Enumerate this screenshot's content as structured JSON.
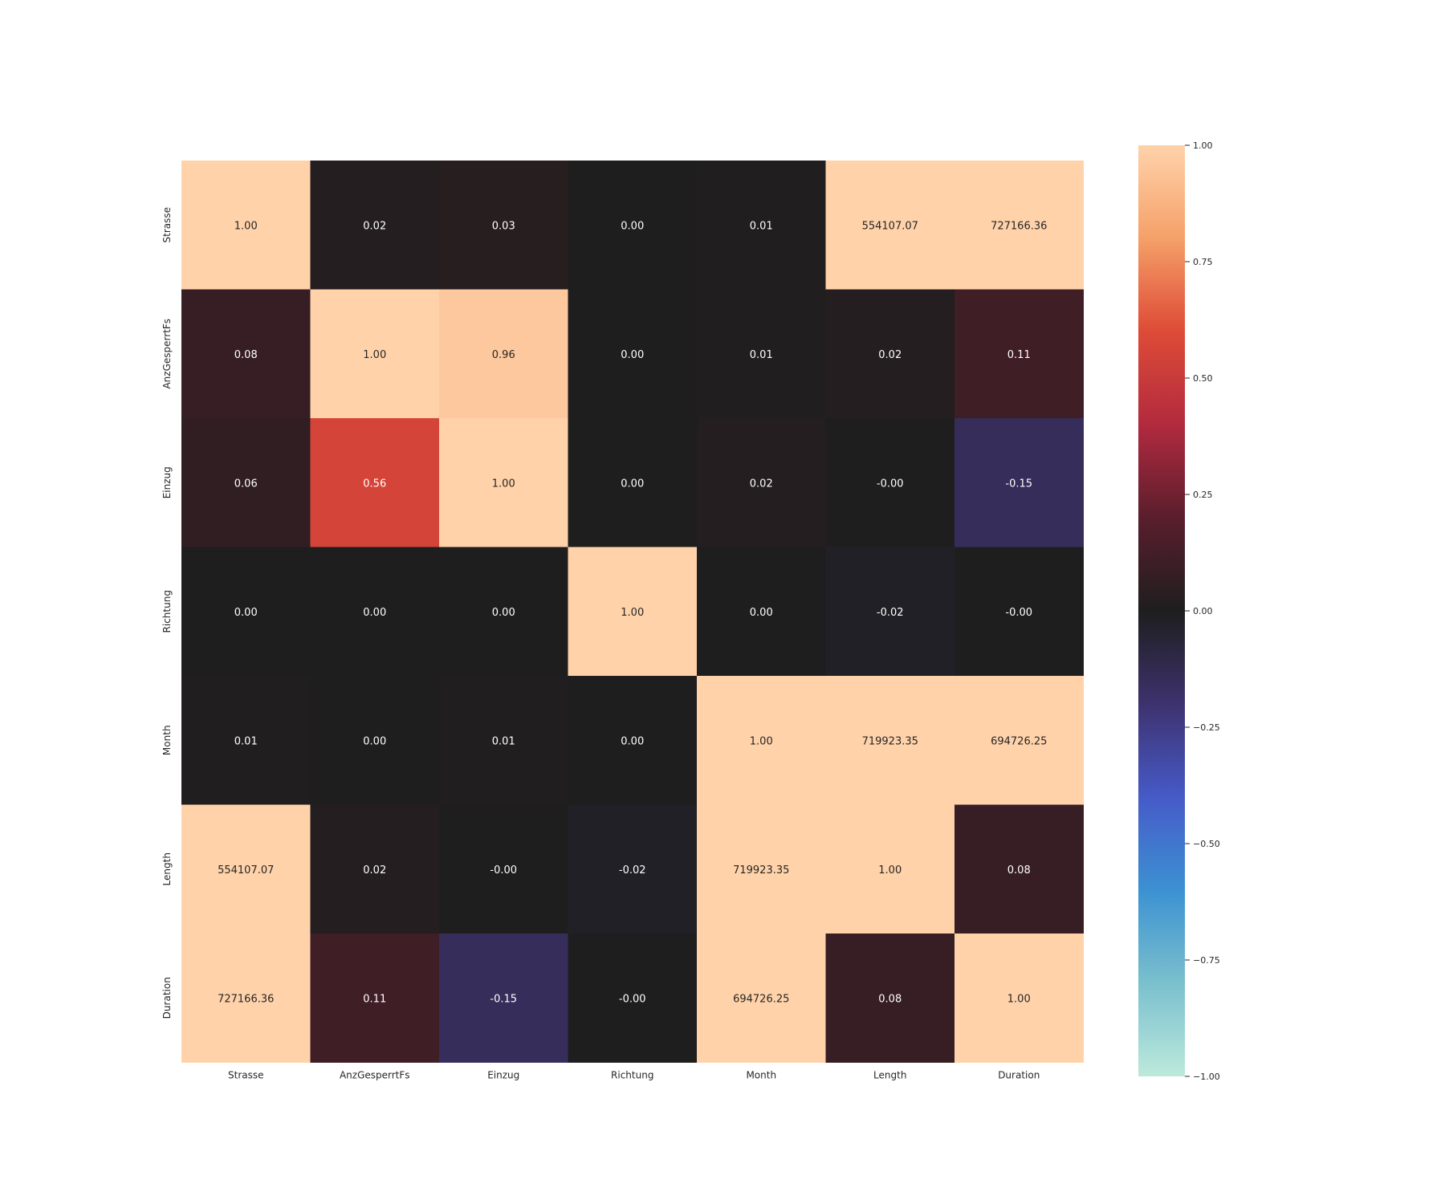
{
  "chart_data": {
    "type": "heatmap",
    "title": "",
    "xlabel": "",
    "ylabel": "",
    "x_categories": [
      "Strasse",
      "AnzGesperrtFs",
      "Einzug",
      "Richtung",
      "Month",
      "Length",
      "Duration"
    ],
    "y_categories": [
      "Strasse",
      "AnzGesperrtFs",
      "Einzug",
      "Richtung",
      "Month",
      "Length",
      "Duration"
    ],
    "values": [
      [
        1.0,
        0.02,
        0.03,
        0.0,
        0.01,
        554107.07,
        727166.36
      ],
      [
        0.08,
        1.0,
        0.96,
        0.0,
        0.01,
        0.02,
        0.11
      ],
      [
        0.06,
        0.56,
        1.0,
        0.0,
        0.02,
        -0.0,
        -0.15
      ],
      [
        0.0,
        0.0,
        0.0,
        1.0,
        0.0,
        -0.02,
        -0.0
      ],
      [
        0.01,
        0.0,
        0.01,
        0.0,
        1.0,
        719923.35,
        694726.25
      ],
      [
        554107.07,
        0.02,
        -0.0,
        -0.02,
        719923.35,
        1.0,
        0.08
      ],
      [
        727166.36,
        0.11,
        -0.15,
        -0.0,
        694726.25,
        0.08,
        1.0
      ]
    ],
    "annotation_format": "{:.2f}",
    "colorscale": "icefire",
    "vmin": -1.0,
    "vmax": 1.0,
    "colorbar": {
      "placement": "right",
      "ticks": [
        1.0,
        0.75,
        0.5,
        0.25,
        0.0,
        -0.25,
        -0.5,
        -0.75,
        -1.0
      ],
      "tick_labels": [
        "1.00",
        "0.75",
        "0.50",
        "0.25",
        "0.00",
        "−0.25",
        "−0.50",
        "−0.75",
        "−1.00"
      ]
    },
    "grid": false
  }
}
